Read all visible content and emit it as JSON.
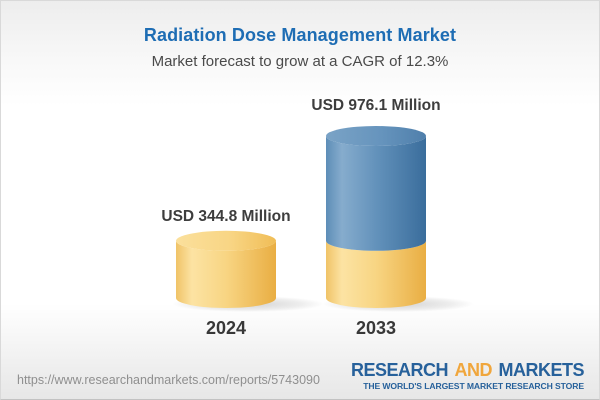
{
  "header": {
    "title": "Radiation Dose Management Market",
    "subtitle": "Market forecast to grow at a CAGR of 12.3%"
  },
  "chart_data": {
    "type": "bar",
    "variant": "3d-cylinder",
    "title": "Radiation Dose Management Market",
    "subtitle": "Market forecast to grow at a CAGR of 12.3%",
    "unit": "USD Million",
    "cagr_percent": 12.3,
    "categories": [
      "2024",
      "2033"
    ],
    "values": [
      344.8,
      976.1
    ],
    "value_labels": [
      "USD 344.8 Million",
      "USD 976.1 Million"
    ],
    "ylim": [
      0,
      976.1
    ],
    "grid": false,
    "legend": "none",
    "colors": {
      "base_segment": "#f5cd74",
      "growth_segment": "#5e90ba"
    },
    "note": "2033 cylinder is stacked: yellow base equals 2024 value, blue portion is growth"
  },
  "footer": {
    "url": "https://www.researchandmarkets.com/reports/5743090",
    "logo": {
      "word_research": "RESEARCH",
      "word_and": "AND",
      "word_markets": "MARKETS",
      "tagline": "THE WORLD'S LARGEST MARKET RESEARCH STORE",
      "blue": "#27619b",
      "gold": "#f0a63c"
    }
  }
}
